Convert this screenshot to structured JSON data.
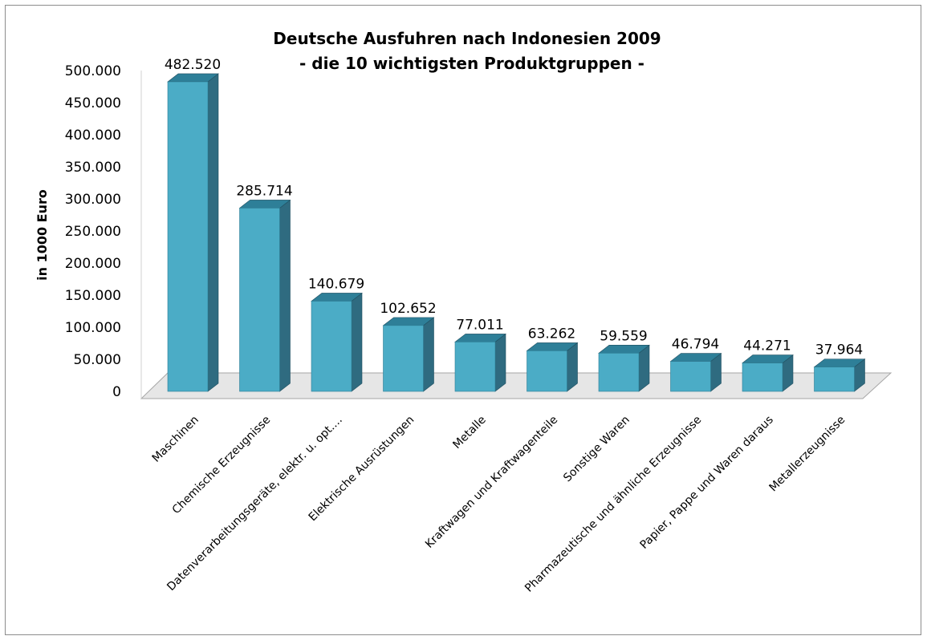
{
  "chart_data": {
    "type": "bar",
    "title_lines": [
      "Deutsche Ausfuhren nach Indonesien 2009",
      "- die 10 wichtigsten Produktgruppen -"
    ],
    "ylabel": "in 1000 Euro",
    "xlabel": "",
    "ylim": [
      0,
      500000
    ],
    "y_ticks": [
      0,
      50000,
      100000,
      150000,
      200000,
      250000,
      300000,
      350000,
      400000,
      450000,
      500000
    ],
    "y_tick_labels": [
      "0",
      "50.000",
      "100.000",
      "150.000",
      "200.000",
      "250.000",
      "300.000",
      "350.000",
      "400.000",
      "450.000",
      "500.000"
    ],
    "grid": false,
    "legend": "none",
    "style": "3d-columns",
    "categories": [
      "Maschinen",
      "Chemische Erzeugnisse",
      "Datenverarbeitungsgeräte, elektr. u. opt....",
      "Elektrische Ausrüstungen",
      "Metalle",
      "Kraftwagen und Kraftwagenteile",
      "Sonstige Waren",
      "Pharmazeutische und ähnliche Erzeugnisse",
      "Papier, Pappe und Waren daraus",
      "Metallerzeugnisse"
    ],
    "values": [
      482520,
      285714,
      140679,
      102652,
      77011,
      63262,
      59559,
      46794,
      44271,
      37964
    ],
    "data_labels": [
      "482.520",
      "285.714",
      "140.679",
      "102.652",
      "77.011",
      "63.262",
      "59.559",
      "46.794",
      "44.271",
      "37.964"
    ],
    "colors": {
      "bar_front": "#4bacc6",
      "bar_top": "#2e7f98",
      "bar_side": "#2f6b80",
      "floor": "#e6e6e6",
      "floor_edge": "#a6a6a6",
      "frame": "#8c8c8c"
    }
  }
}
